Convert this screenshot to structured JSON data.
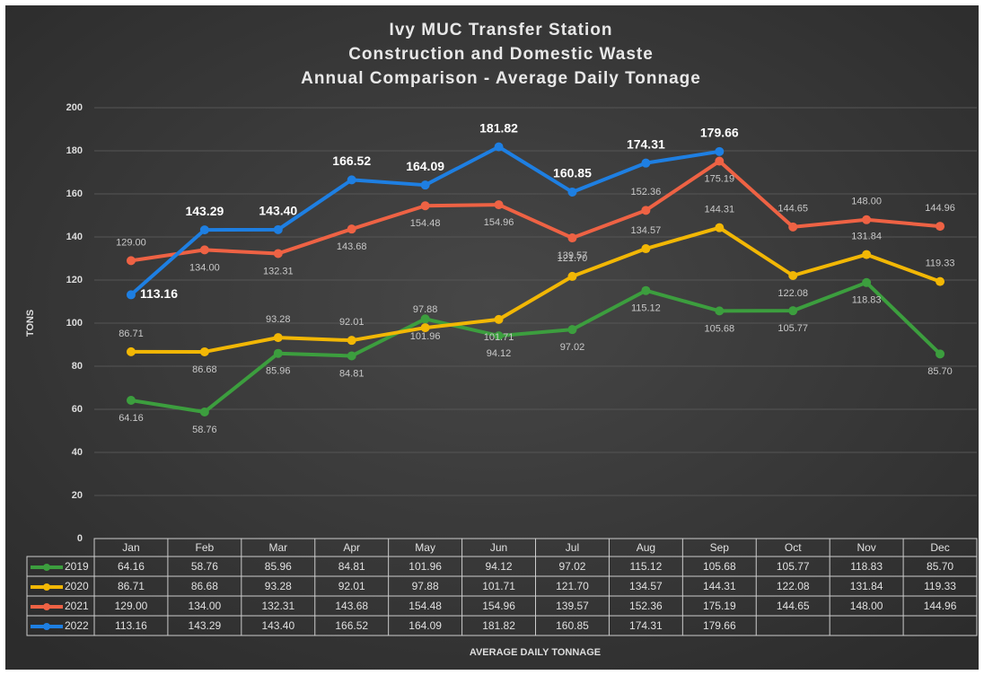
{
  "chart_data": {
    "type": "line",
    "title": [
      "Ivy MUC Transfer Station",
      "Construction and Domestic Waste",
      "Annual Comparison - Average Daily Tonnage"
    ],
    "ylabel": "TONS",
    "xlabel": "AVERAGE DAILY TONNAGE",
    "categories": [
      "Jan",
      "Feb",
      "Mar",
      "Apr",
      "May",
      "Jun",
      "Jul",
      "Aug",
      "Sep",
      "Oct",
      "Nov",
      "Dec"
    ],
    "ylim": [
      0,
      200
    ],
    "yticks": [
      0,
      20,
      40,
      60,
      80,
      100,
      120,
      140,
      160,
      180,
      200
    ],
    "grid": true,
    "series": [
      {
        "name": "2019",
        "color": "#3c9e3e",
        "values": [
          64.16,
          58.76,
          85.96,
          84.81,
          101.96,
          94.12,
          97.02,
          115.12,
          105.68,
          105.77,
          118.83,
          85.7
        ],
        "value_labels": [
          "64.16",
          "58.76",
          "85.96",
          "84.81",
          "101.96",
          "94.12",
          "97.02",
          "115.12",
          "105.68",
          "105.77",
          "118.83",
          "85.70"
        ]
      },
      {
        "name": "2020",
        "color": "#f2b705",
        "values": [
          86.71,
          86.68,
          93.28,
          92.01,
          97.88,
          101.71,
          121.7,
          134.57,
          144.31,
          122.08,
          131.84,
          119.33
        ],
        "value_labels": [
          "86.71",
          "86.68",
          "93.28",
          "92.01",
          "97.88",
          "101.71",
          "121.70",
          "134.57",
          "144.31",
          "122.08",
          "131.84",
          "119.33"
        ]
      },
      {
        "name": "2021",
        "color": "#ee6244",
        "values": [
          129.0,
          134.0,
          132.31,
          143.68,
          154.48,
          154.96,
          139.57,
          152.36,
          175.19,
          144.65,
          148.0,
          144.96
        ],
        "value_labels": [
          "129.00",
          "134.00",
          "132.31",
          "143.68",
          "154.48",
          "154.96",
          "139.57",
          "152.36",
          "175.19",
          "144.65",
          "148.00",
          "144.96"
        ]
      },
      {
        "name": "2022",
        "color": "#1e7fe2",
        "values": [
          113.16,
          143.29,
          143.4,
          166.52,
          164.09,
          181.82,
          160.85,
          174.31,
          179.66,
          null,
          null,
          null
        ],
        "value_labels": [
          "113.16",
          "143.29",
          "143.40",
          "166.52",
          "164.09",
          "181.82",
          "160.85",
          "174.31",
          "179.66",
          null,
          null,
          null
        ]
      }
    ]
  }
}
